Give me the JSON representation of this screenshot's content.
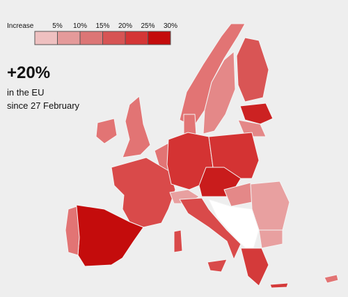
{
  "legend": {
    "title": "Increase",
    "labels": [
      "5%",
      "10%",
      "15%",
      "20%",
      "25%",
      "30%"
    ]
  },
  "headline": {
    "value": "+20%",
    "line1": "in the EU",
    "line2": "since 27 February"
  }
}
